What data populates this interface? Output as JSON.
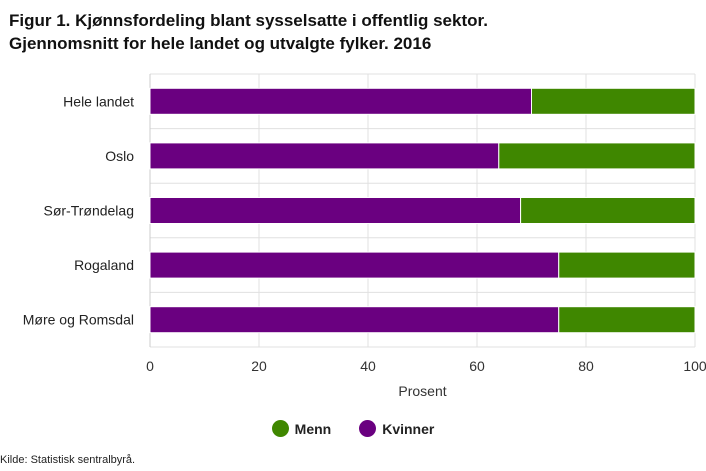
{
  "header": {
    "title_line1": "Figur 1. Kjønnsfordeling blant sysselsatte i offentlig sektor.",
    "title_line2": "Gjennomsnitt for hele landet og utvalgte fylker. 2016"
  },
  "source": "Kilde: Statistisk sentralbyrå.",
  "colors": {
    "kvinner": "#6a0080",
    "menn": "#3f8700",
    "grid": "#e0e0e0",
    "axis": "#999999"
  },
  "chart_data": {
    "type": "bar",
    "orientation": "horizontal",
    "stacked": true,
    "categories": [
      "Hele landet",
      "Oslo",
      "Sør-Trøndelag",
      "Rogaland",
      "Møre og Romsdal"
    ],
    "series": [
      {
        "name": "Kvinner",
        "values": [
          70,
          64,
          68,
          75,
          75
        ]
      },
      {
        "name": "Menn",
        "values": [
          30,
          36,
          32,
          25,
          25
        ]
      }
    ],
    "xlabel": "Prosent",
    "ylabel": "",
    "xlim": [
      0,
      100
    ],
    "xticks": [
      0,
      20,
      40,
      60,
      80,
      100
    ],
    "grid": true,
    "legend_position": "bottom"
  },
  "legend": [
    {
      "label": "Menn",
      "color": "#3f8700"
    },
    {
      "label": "Kvinner",
      "color": "#6a0080"
    }
  ]
}
